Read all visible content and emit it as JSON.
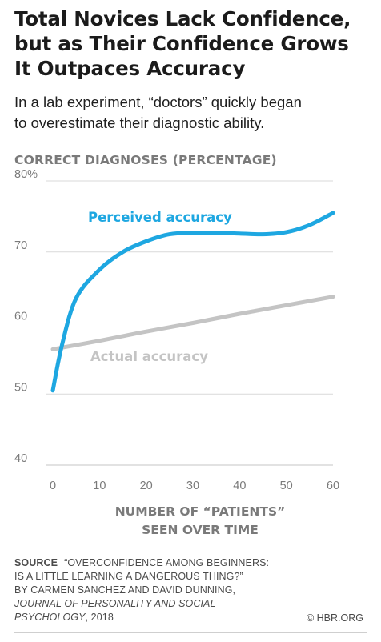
{
  "title_lines": [
    "Total Novices Lack Confidence,",
    "but as Their Confidence Grows",
    "It Outpaces Accuracy"
  ],
  "subtitle_lines": [
    "In a lab experiment, “doctors” quickly began",
    "to overestimate their diagnostic ability."
  ],
  "source": {
    "label": "SOURCE",
    "line1": "“OVERCONFIDENCE AMONG BEGINNERS:",
    "line2": "IS A LITTLE LEARNING A DANGEROUS THING?”",
    "line3": "BY CARMEN SANCHEZ AND DAVID DUNNING,",
    "line4_italic": "JOURNAL OF PERSONALITY AND SOCIAL",
    "line5_italic": "PSYCHOLOGY",
    "line5_rest": ", 2018"
  },
  "credit": "© HBR.ORG",
  "colors": {
    "perceived": "#1ea7e1",
    "actual": "#c4c4c4",
    "grid": "#d9d9d9",
    "axis_text": "#7a7a7a"
  },
  "chart_data": {
    "type": "line",
    "ylabel": "CORRECT DIAGNOSES (PERCENTAGE)",
    "xlabel_lines": [
      "NUMBER OF “PATIENTS”",
      "SEEN OVER TIME"
    ],
    "ylim": [
      40,
      80
    ],
    "xlim": [
      0,
      60
    ],
    "yticks": [
      40,
      50,
      60,
      70,
      80
    ],
    "ytick_labels": [
      "40",
      "50",
      "60",
      "70",
      "80%"
    ],
    "xticks": [
      0,
      10,
      20,
      30,
      40,
      50,
      60
    ],
    "xtick_labels": [
      "0",
      "10",
      "20",
      "30",
      "40",
      "50",
      "60"
    ],
    "grid": true,
    "series": [
      {
        "name": "Perceived  accuracy",
        "x": [
          0,
          2,
          5,
          10,
          15,
          20,
          25,
          30,
          35,
          40,
          45,
          50,
          55,
          60
        ],
        "y": [
          50.5,
          57,
          63.5,
          67.5,
          70,
          71.5,
          72.5,
          72.7,
          72.7,
          72.6,
          72.5,
          72.8,
          73.8,
          75.5
        ]
      },
      {
        "name": "Actual  accuracy",
        "x": [
          0,
          10,
          20,
          30,
          40,
          50,
          60
        ],
        "y": [
          56.3,
          57.5,
          58.8,
          60.0,
          61.3,
          62.5,
          63.7
        ]
      }
    ]
  }
}
